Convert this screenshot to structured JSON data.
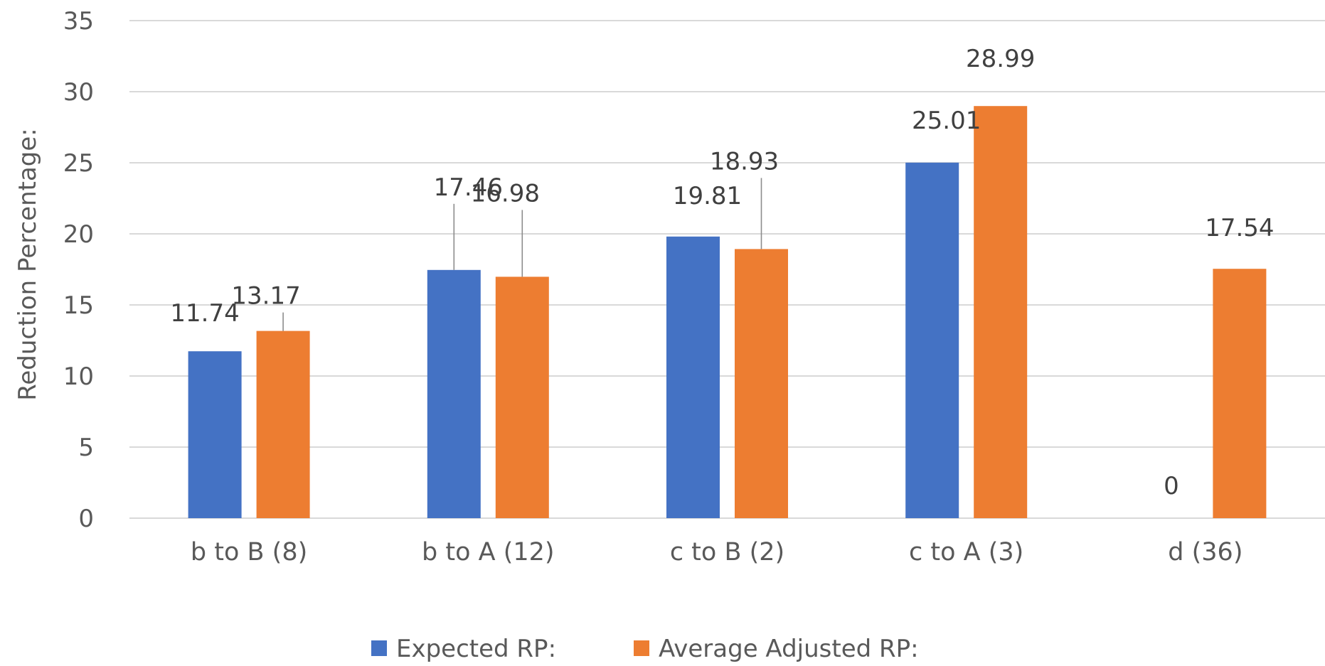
{
  "chart_data": {
    "type": "bar",
    "categories": [
      "b to B (8)",
      "b to A (12)",
      "c to B (2)",
      "c to A (3)",
      "d (36)"
    ],
    "series": [
      {
        "name": "Expected RP:",
        "values": [
          11.74,
          17.46,
          19.81,
          25.01,
          0
        ],
        "color": "#4472c4"
      },
      {
        "name": "Average Adjusted RP:",
        "values": [
          13.17,
          16.98,
          18.93,
          28.99,
          17.54
        ],
        "color": "#ed7d31"
      }
    ],
    "data_labels": [
      [
        "11.74",
        "17.46",
        "19.81",
        "25.01",
        "0"
      ],
      [
        "13.17",
        "16.98",
        "18.93",
        "28.99",
        "17.54"
      ]
    ],
    "ylabel": "Reduction Percentage:",
    "ylim": [
      0,
      35
    ],
    "yticks": [
      0,
      5,
      10,
      15,
      20,
      25,
      30,
      35
    ],
    "grid": true,
    "legend_position": "bottom"
  }
}
